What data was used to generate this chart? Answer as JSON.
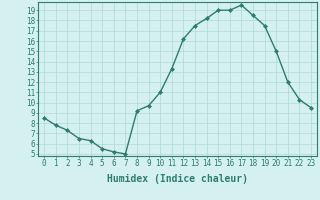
{
  "x": [
    0,
    1,
    2,
    3,
    4,
    5,
    6,
    7,
    8,
    9,
    10,
    11,
    12,
    13,
    14,
    15,
    16,
    17,
    18,
    19,
    20,
    21,
    22,
    23
  ],
  "y": [
    8.5,
    7.8,
    7.3,
    6.5,
    6.3,
    5.5,
    5.2,
    5.0,
    9.2,
    9.7,
    11.0,
    13.3,
    16.2,
    17.5,
    18.2,
    19.0,
    19.0,
    19.5,
    18.5,
    17.5,
    15.0,
    12.0,
    10.3,
    9.5
  ],
  "line_color": "#2e7d6e",
  "marker": "D",
  "marker_size": 2,
  "bg_color": "#d4f0f0",
  "grid_color": "#b0d8d8",
  "axis_color": "#2e7d6e",
  "xlabel": "Humidex (Indice chaleur)",
  "ylim": [
    4.8,
    19.8
  ],
  "xlim": [
    -0.5,
    23.5
  ],
  "yticks": [
    5,
    6,
    7,
    8,
    9,
    10,
    11,
    12,
    13,
    14,
    15,
    16,
    17,
    18,
    19
  ],
  "xticks": [
    0,
    1,
    2,
    3,
    4,
    5,
    6,
    7,
    8,
    9,
    10,
    11,
    12,
    13,
    14,
    15,
    16,
    17,
    18,
    19,
    20,
    21,
    22,
    23
  ],
  "tick_fontsize": 5.5,
  "xlabel_fontsize": 7
}
